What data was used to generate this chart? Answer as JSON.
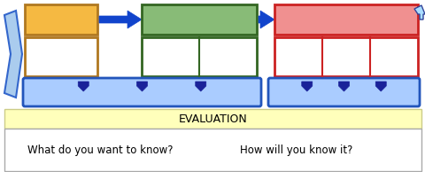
{
  "fig_width": 4.81,
  "fig_height": 1.94,
  "dpi": 100,
  "bg_color": "#ffffff",
  "eval_bar_color": "#ffffbb",
  "eval_bar_border": "#cccc88",
  "eval_text": "EVALUATION",
  "eval_text_size": 9,
  "q1_text": "What do you want to know?",
  "q2_text": "How will you know it?",
  "q_text_size": 8.5,
  "bottom_bar_color": "#ffffff",
  "bottom_bar_border": "#aaaaaa",
  "arrow_blue": "#1144cc",
  "box1_fill": "#f5b942",
  "box1_border": "#b07820",
  "box2_fill": "#88bb77",
  "box2_border": "#336622",
  "box3_fill": "#f09090",
  "box3_border": "#cc2222",
  "subbox_fill": "#ffffff",
  "wave_fill": "#aaccff",
  "wave_border": "#2255bb",
  "wave_dark": "#1a2299",
  "left_fill": "#aaccee",
  "left_border": "#3366cc",
  "small_arr_fill": "#aaddff",
  "small_arr_border": "#334499"
}
